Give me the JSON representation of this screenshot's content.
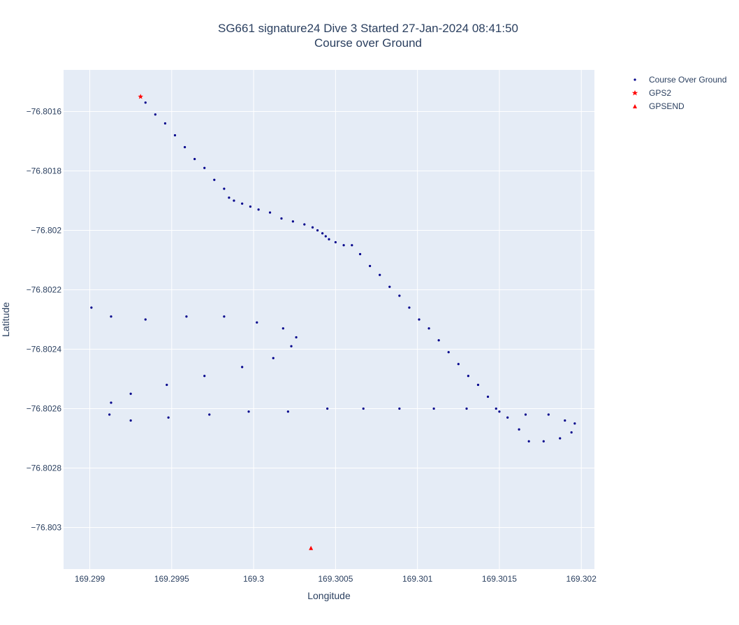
{
  "chart_data": {
    "type": "scatter",
    "title": "SG661 signature24 Dive 3 Started 27-Jan-2024 08:41:50",
    "subtitle": "Course over Ground",
    "xlabel": "Longitude",
    "ylabel": "Latitude",
    "xlim": [
      169.29884,
      169.30208
    ],
    "ylim": [
      -76.80314,
      -76.80146
    ],
    "x_ticks": [
      169.299,
      169.2995,
      169.3,
      169.3005,
      169.301,
      169.3015,
      169.302
    ],
    "x_tick_labels": [
      "169.299",
      "169.2995",
      "169.3",
      "169.3005",
      "169.301",
      "169.3015",
      "169.302"
    ],
    "y_ticks": [
      -76.8016,
      -76.8018,
      -76.802,
      -76.8022,
      -76.8024,
      -76.8026,
      -76.8028,
      -76.803
    ],
    "y_tick_labels": [
      "−76.8016",
      "−76.8018",
      "−76.802",
      "−76.8022",
      "−76.8024",
      "−76.8026",
      "−76.8028",
      "−76.803"
    ],
    "grid": true,
    "legend_position": "top-right",
    "series": [
      {
        "name": "Course Over Ground",
        "marker": "dot",
        "color": "#00008b",
        "points": [
          [
            169.29934,
            -76.80157
          ],
          [
            169.2994,
            -76.80161
          ],
          [
            169.29946,
            -76.80164
          ],
          [
            169.29952,
            -76.80168
          ],
          [
            169.29958,
            -76.80172
          ],
          [
            169.29964,
            -76.80176
          ],
          [
            169.2997,
            -76.80179
          ],
          [
            169.29976,
            -76.80183
          ],
          [
            169.29982,
            -76.80186
          ],
          [
            169.29985,
            -76.80189
          ],
          [
            169.29988,
            -76.8019
          ],
          [
            169.29993,
            -76.80191
          ],
          [
            169.29998,
            -76.80192
          ],
          [
            169.30003,
            -76.80193
          ],
          [
            169.3001,
            -76.80194
          ],
          [
            169.30017,
            -76.80196
          ],
          [
            169.30024,
            -76.80197
          ],
          [
            169.30031,
            -76.80198
          ],
          [
            169.30036,
            -76.80199
          ],
          [
            169.30039,
            -76.802
          ],
          [
            169.30042,
            -76.80201
          ],
          [
            169.30044,
            -76.80202
          ],
          [
            169.30046,
            -76.80203
          ],
          [
            169.3005,
            -76.80204
          ],
          [
            169.30055,
            -76.80205
          ],
          [
            169.3006,
            -76.80205
          ],
          [
            169.30065,
            -76.80208
          ],
          [
            169.30071,
            -76.80212
          ],
          [
            169.30077,
            -76.80215
          ],
          [
            169.30083,
            -76.80219
          ],
          [
            169.30089,
            -76.80222
          ],
          [
            169.30095,
            -76.80226
          ],
          [
            169.30101,
            -76.8023
          ],
          [
            169.30107,
            -76.80233
          ],
          [
            169.30113,
            -76.80237
          ],
          [
            169.30119,
            -76.80241
          ],
          [
            169.30125,
            -76.80245
          ],
          [
            169.30131,
            -76.80249
          ],
          [
            169.30137,
            -76.80252
          ],
          [
            169.30143,
            -76.80256
          ],
          [
            169.30148,
            -76.8026
          ],
          [
            169.3015,
            -76.80261
          ],
          [
            169.30155,
            -76.80263
          ],
          [
            169.30162,
            -76.80267
          ],
          [
            169.30168,
            -76.80271
          ],
          [
            169.30177,
            -76.80271
          ],
          [
            169.30187,
            -76.8027
          ],
          [
            169.30194,
            -76.80268
          ],
          [
            169.30196,
            -76.80265
          ],
          [
            169.3019,
            -76.80264
          ],
          [
            169.3018,
            -76.80262
          ],
          [
            169.30166,
            -76.80262
          ],
          [
            169.3013,
            -76.8026
          ],
          [
            169.3011,
            -76.8026
          ],
          [
            169.30089,
            -76.8026
          ],
          [
            169.30067,
            -76.8026
          ],
          [
            169.30045,
            -76.8026
          ],
          [
            169.30021,
            -76.80261
          ],
          [
            169.29997,
            -76.80261
          ],
          [
            169.29973,
            -76.80262
          ],
          [
            169.29948,
            -76.80263
          ],
          [
            169.29925,
            -76.80264
          ],
          [
            169.29912,
            -76.80262
          ],
          [
            169.29913,
            -76.80258
          ],
          [
            169.29925,
            -76.80255
          ],
          [
            169.29947,
            -76.80252
          ],
          [
            169.2997,
            -76.80249
          ],
          [
            169.29993,
            -76.80246
          ],
          [
            169.30012,
            -76.80243
          ],
          [
            169.30023,
            -76.80239
          ],
          [
            169.30026,
            -76.80236
          ],
          [
            169.30018,
            -76.80233
          ],
          [
            169.30002,
            -76.80231
          ],
          [
            169.29982,
            -76.80229
          ],
          [
            169.29959,
            -76.80229
          ],
          [
            169.29934,
            -76.8023
          ],
          [
            169.29913,
            -76.80229
          ],
          [
            169.29901,
            -76.80226
          ]
        ]
      },
      {
        "name": "GPS2",
        "marker": "star",
        "color": "#ff0000",
        "points": [
          [
            169.29931,
            -76.80155
          ]
        ]
      },
      {
        "name": "GPSEND",
        "marker": "triangle-up",
        "color": "#ff0000",
        "points": [
          [
            169.30035,
            -76.80307
          ]
        ]
      }
    ]
  }
}
